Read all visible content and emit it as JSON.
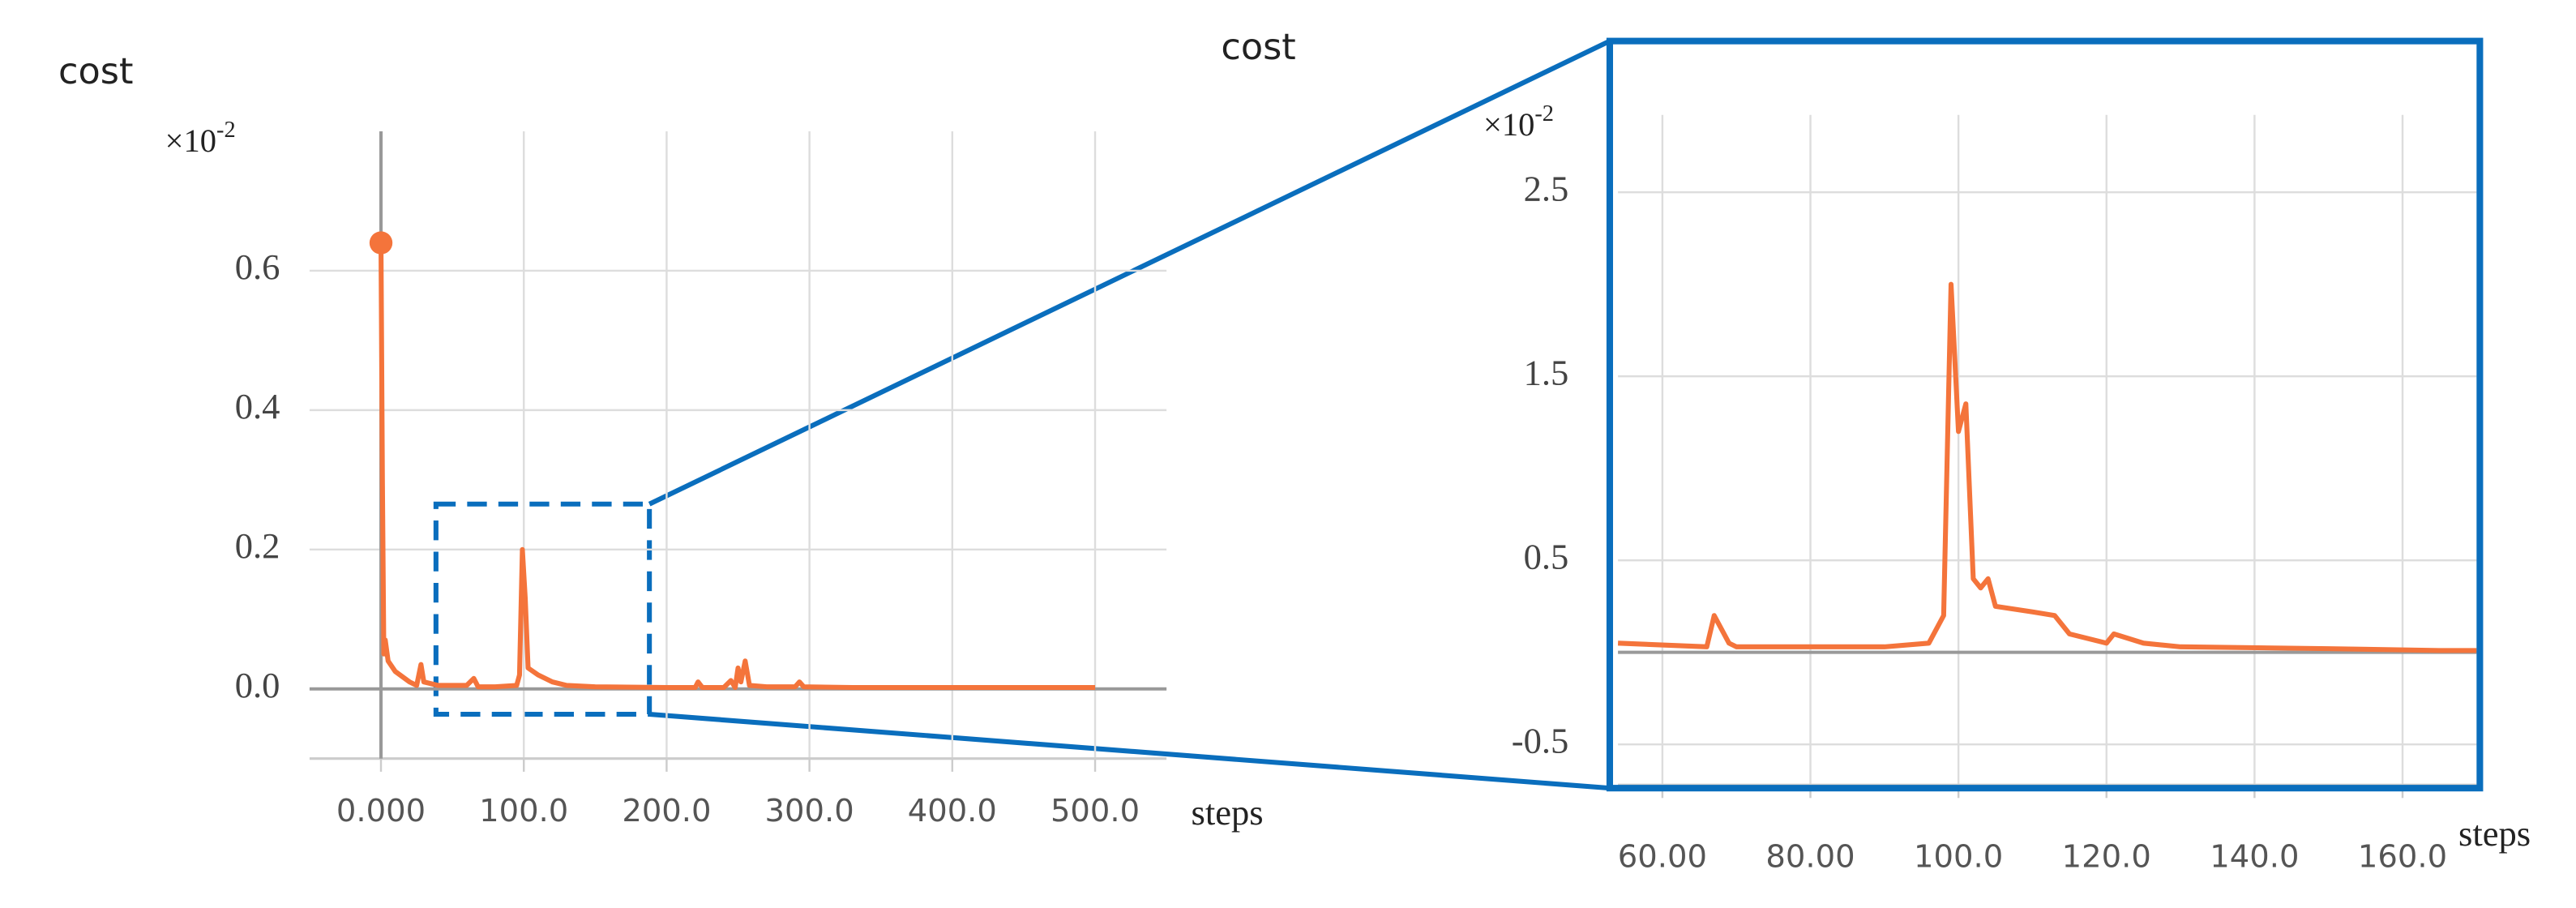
{
  "chart_data": [
    {
      "type": "line",
      "title": "cost",
      "xlabel": "steps",
      "y_multiplier": {
        "base": "×10",
        "exponent": "-2"
      },
      "color": "#f4743b",
      "grid": true,
      "highlight_first": true,
      "xlim": [
        -50,
        550
      ],
      "ylim": [
        -0.1,
        0.8
      ],
      "xticks": [
        {
          "value": 0,
          "label": "0.000"
        },
        {
          "value": 100,
          "label": "100.0"
        },
        {
          "value": 200,
          "label": "200.0"
        },
        {
          "value": 300,
          "label": "300.0"
        },
        {
          "value": 400,
          "label": "400.0"
        },
        {
          "value": 500,
          "label": "500.0"
        }
      ],
      "yticks": [
        {
          "value": 0,
          "label": "0.0"
        },
        0.2,
        0.4,
        0.6
      ],
      "x": [
        0,
        1,
        2,
        3,
        5,
        10,
        20,
        25,
        28,
        30,
        40,
        60,
        65,
        68,
        80,
        95,
        97,
        99,
        101,
        103,
        110,
        120,
        130,
        150,
        200,
        220,
        222,
        225,
        240,
        245,
        248,
        250,
        252,
        255,
        258,
        270,
        290,
        293,
        296,
        330,
        350,
        400,
        450,
        480,
        500
      ],
      "values": [
        0.64,
        0.3,
        0.05,
        0.07,
        0.04,
        0.025,
        0.01,
        0.005,
        0.035,
        0.01,
        0.005,
        0.005,
        0.015,
        0.003,
        0.003,
        0.005,
        0.02,
        0.2,
        0.13,
        0.03,
        0.02,
        0.01,
        0.005,
        0.003,
        0.002,
        0.002,
        0.01,
        0.002,
        0.002,
        0.012,
        0.002,
        0.03,
        0.01,
        0.04,
        0.005,
        0.003,
        0.003,
        0.01,
        0.003,
        0.002,
        0.002,
        0.002,
        0.002,
        0.002,
        0.002
      ]
    },
    {
      "type": "line",
      "title": "cost",
      "xlabel": "steps",
      "y_multiplier": {
        "base": "×10",
        "exponent": "-2"
      },
      "color": "#f4743b",
      "grid": true,
      "highlight_first": false,
      "xlim": [
        54,
        170
      ],
      "ylim": [
        -0.72,
        2.92
      ],
      "xticks": [
        {
          "value": 60,
          "label": "60.00"
        },
        {
          "value": 80,
          "label": "80.00"
        },
        {
          "value": 100,
          "label": "100.0"
        },
        {
          "value": 120,
          "label": "120.0"
        },
        {
          "value": 140,
          "label": "140.0"
        },
        {
          "value": 160,
          "label": "160.0"
        }
      ],
      "yticks": [
        -0.5,
        0.5,
        1.5,
        2.5
      ],
      "x": [
        54,
        66,
        67,
        69,
        70,
        90,
        96,
        98,
        99,
        100,
        101,
        102,
        103,
        104,
        105,
        110,
        113,
        115,
        120,
        121,
        125,
        130,
        150,
        165,
        170
      ],
      "values": [
        0.05,
        0.03,
        0.2,
        0.05,
        0.03,
        0.03,
        0.05,
        0.2,
        2.0,
        1.2,
        1.35,
        0.4,
        0.35,
        0.4,
        0.25,
        0.22,
        0.2,
        0.1,
        0.05,
        0.1,
        0.05,
        0.03,
        0.02,
        0.01,
        0.01
      ]
    }
  ]
}
